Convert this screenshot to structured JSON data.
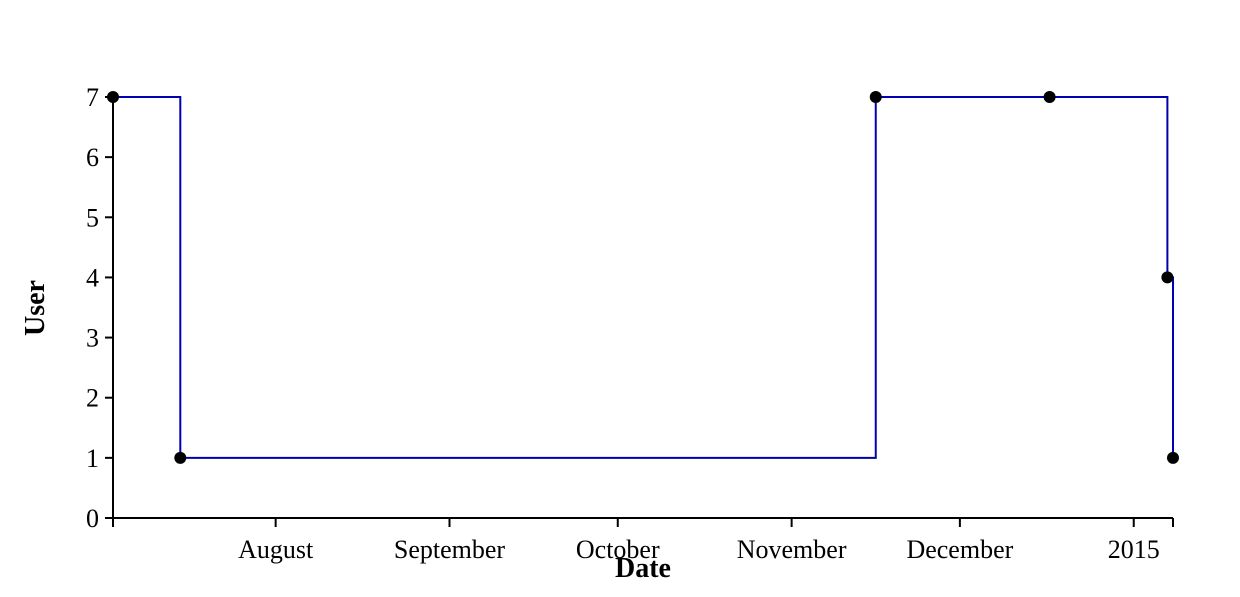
{
  "chart_data": {
    "type": "line",
    "interpolation": "step-after",
    "xlabel": "Date",
    "ylabel": "User",
    "xlim": [
      "2014-07-03",
      "2015-01-08"
    ],
    "ylim": [
      0,
      7
    ],
    "grid": false,
    "x_ticks": [
      {
        "date": "2014-07-03",
        "label": ""
      },
      {
        "date": "2014-08-01",
        "label": "August"
      },
      {
        "date": "2014-09-01",
        "label": "September"
      },
      {
        "date": "2014-10-01",
        "label": "October"
      },
      {
        "date": "2014-11-01",
        "label": "November"
      },
      {
        "date": "2014-12-01",
        "label": "December"
      },
      {
        "date": "2015-01-01",
        "label": "2015"
      },
      {
        "date": "2015-01-08",
        "label": ""
      }
    ],
    "y_ticks": [
      0,
      1,
      2,
      3,
      4,
      5,
      6,
      7
    ],
    "series": [
      {
        "color": "#0000b0",
        "x": [
          "2014-07-03",
          "2014-07-15",
          "2014-11-16",
          "2014-12-17",
          "2015-01-07",
          "2015-01-08"
        ],
        "y": [
          7,
          1,
          7,
          7,
          4,
          1
        ]
      }
    ]
  }
}
